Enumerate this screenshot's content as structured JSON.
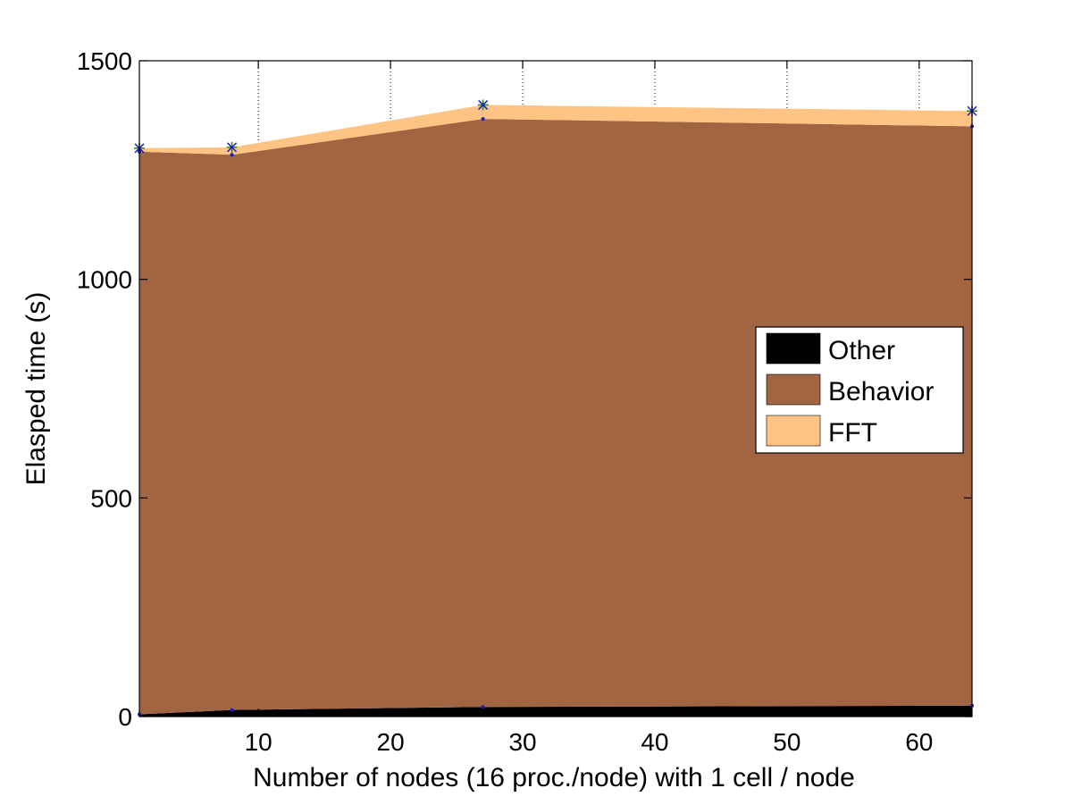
{
  "chart_data": {
    "type": "area",
    "stacked": true,
    "x": [
      1,
      8,
      27,
      64
    ],
    "series": [
      {
        "name": "Other",
        "values": [
          5,
          15,
          22,
          25
        ],
        "color": "#000000"
      },
      {
        "name": "Behavior",
        "values": [
          1287,
          1270,
          1345,
          1325
        ],
        "color": "#a16641"
      },
      {
        "name": "FFT",
        "values": [
          8,
          17,
          32,
          35
        ],
        "color": "#ffc483"
      }
    ],
    "totals": [
      1300,
      1302,
      1399,
      1385
    ],
    "title": "",
    "xlabel": "Number of nodes (16 proc./node) with 1 cell / node",
    "ylabel": "Elasped time (s)",
    "xlim": [
      1,
      64
    ],
    "ylim": [
      0,
      1500
    ],
    "xticks": [
      10,
      20,
      30,
      40,
      50,
      60
    ],
    "yticks": [
      0,
      500,
      1000,
      1500
    ],
    "xtick_labels": [
      "10",
      "20",
      "30",
      "40",
      "50",
      "60"
    ],
    "ytick_labels": [
      "0",
      "500",
      "1000",
      "1500"
    ],
    "grid": "x-dotted",
    "legend_position": "right"
  }
}
